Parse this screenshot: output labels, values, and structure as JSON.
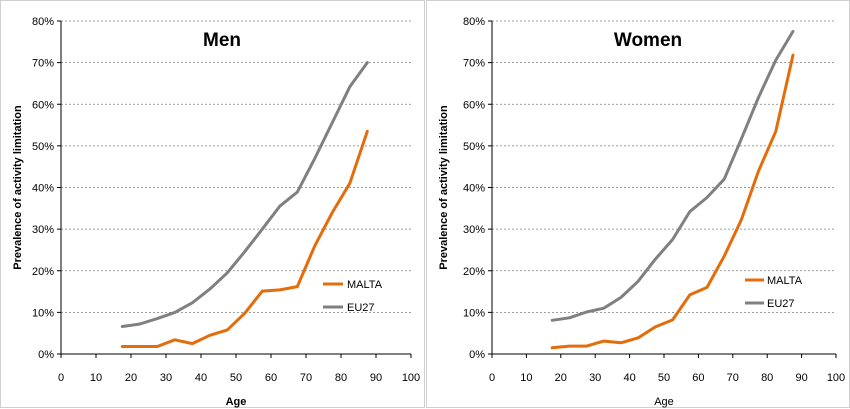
{
  "chart_data": [
    {
      "type": "line",
      "title": "Men",
      "xlabel": "Age",
      "ylabel": "Prevalence of activity  limitation",
      "xlim": [
        0,
        100
      ],
      "ylim": [
        0,
        80
      ],
      "x_ticks": [
        0,
        10,
        20,
        30,
        40,
        50,
        60,
        70,
        80,
        90,
        100
      ],
      "y_ticks": [
        "0%",
        "10%",
        "20%",
        "30%",
        "40%",
        "50%",
        "60%",
        "70%",
        "80%"
      ],
      "grid": true,
      "legend": "right",
      "series": [
        {
          "name": "MALTA",
          "color": "#E46C0A",
          "x": [
            17.5,
            22.5,
            27.5,
            32.5,
            37.5,
            42.5,
            47.5,
            52.5,
            57.5,
            62.5,
            67.5,
            72.5,
            77.5,
            82.5,
            87.5
          ],
          "y": [
            1.8,
            1.8,
            1.8,
            3.4,
            2.5,
            4.5,
            5.8,
            9.8,
            15.1,
            15.4,
            16.2,
            26.0,
            34.0,
            41.0,
            53.5
          ]
        },
        {
          "name": "EU27",
          "color": "#808080",
          "x": [
            17.5,
            22.5,
            27.5,
            32.5,
            37.5,
            42.5,
            47.5,
            52.5,
            57.5,
            62.5,
            67.5,
            72.5,
            77.5,
            82.5,
            87.5
          ],
          "y": [
            6.6,
            7.2,
            8.5,
            10.0,
            12.3,
            15.6,
            19.5,
            24.6,
            30.0,
            35.5,
            38.9,
            47.0,
            55.6,
            64.2,
            70.0
          ]
        }
      ]
    },
    {
      "type": "line",
      "title": "Women",
      "xlabel": "Age",
      "ylabel": "Prevalence of activity  limitation",
      "xlim": [
        0,
        100
      ],
      "ylim": [
        0,
        80
      ],
      "x_ticks": [
        0,
        10,
        20,
        30,
        40,
        50,
        60,
        70,
        80,
        90,
        100
      ],
      "y_ticks": [
        "0%",
        "10%",
        "20%",
        "30%",
        "40%",
        "50%",
        "60%",
        "70%",
        "80%"
      ],
      "grid": true,
      "legend": "right",
      "series": [
        {
          "name": "MALTA",
          "color": "#E46C0A",
          "x": [
            17.5,
            22.5,
            27.5,
            32.5,
            37.5,
            42.5,
            47.5,
            52.5,
            57.5,
            62.5,
            67.5,
            72.5,
            77.5,
            82.5,
            87.5
          ],
          "y": [
            1.5,
            1.9,
            1.9,
            3.1,
            2.7,
            3.9,
            6.5,
            8.2,
            14.2,
            16.0,
            23.5,
            32.3,
            44.0,
            53.5,
            71.8
          ]
        },
        {
          "name": "EU27",
          "color": "#808080",
          "x": [
            17.5,
            22.5,
            27.5,
            32.5,
            37.5,
            42.5,
            47.5,
            52.5,
            57.5,
            62.5,
            67.5,
            72.5,
            77.5,
            82.5,
            87.5
          ],
          "y": [
            8.1,
            8.7,
            10.1,
            11.0,
            13.6,
            17.5,
            22.8,
            27.5,
            34.2,
            37.6,
            42.0,
            51.7,
            61.7,
            70.6,
            77.5
          ]
        }
      ]
    }
  ]
}
